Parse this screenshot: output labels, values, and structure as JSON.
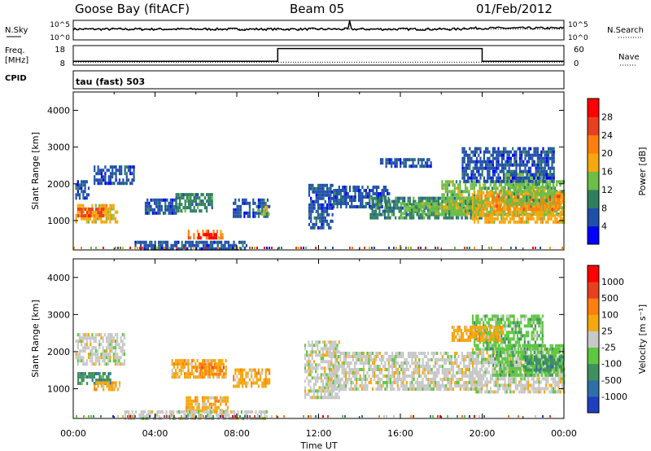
{
  "header": {
    "station": "Goose Bay (fitACF)",
    "beam": "Beam 05",
    "date": "01/Feb/2012"
  },
  "panels": {
    "nsky_label": "N.Sky",
    "nsearch_label": "N.Search",
    "freq_label_1": "Freq.",
    "freq_label_2": "[MHz]",
    "nave_label": "Nave",
    "cpid_label": "CPID",
    "cpid_text": "tau (fast) 503"
  },
  "chart_data": [
    {
      "type": "line",
      "name": "noise",
      "x_unit": "hours UT",
      "left_ticks": [
        "10^5",
        "10^0"
      ],
      "right_ticks": [
        "10^5",
        "10^0"
      ],
      "nsky_level": 0.55,
      "nsky_spike_x": 13.5
    },
    {
      "type": "line",
      "name": "frequency-nave",
      "left_ticks": [
        "18",
        "8"
      ],
      "right_ticks": [
        "60",
        "0"
      ],
      "nave_segments": [
        {
          "x0": 0,
          "x1": 10,
          "value": 0.2
        },
        {
          "x0": 10,
          "x1": 20,
          "value": 0.85
        },
        {
          "x0": 20,
          "x1": 24,
          "value": 0.2
        }
      ],
      "freq_level": 0.15
    },
    {
      "type": "heatmap",
      "name": "power",
      "ylabel": "Slant Range [km]",
      "ylim": [
        200,
        4500
      ],
      "yticks": [
        "1000",
        "2000",
        "3000",
        "4000"
      ],
      "colorbar": {
        "label": "Power [dB]",
        "ticks": [
          "4",
          "8",
          "12",
          "16",
          "20",
          "24",
          "28"
        ],
        "colors": [
          "#0000ff",
          "#1f4fa8",
          "#2f7f5f",
          "#6dbd48",
          "#f5a80e",
          "#ff7f0e",
          "#e8401f",
          "#ff0000"
        ]
      },
      "regions": [
        {
          "x0": 0.1,
          "x1": 0.8,
          "y0": 1650,
          "y1": 2100,
          "level": 1
        },
        {
          "x0": 0.1,
          "x1": 2.2,
          "y0": 1000,
          "y1": 1450,
          "level": 4
        },
        {
          "x0": 0.2,
          "x1": 1.5,
          "y0": 1150,
          "y1": 1350,
          "level": 6
        },
        {
          "x0": 1.0,
          "x1": 3.0,
          "y0": 2000,
          "y1": 2500,
          "level": 1
        },
        {
          "x0": 3.5,
          "x1": 5.0,
          "y0": 1200,
          "y1": 1600,
          "level": 1
        },
        {
          "x0": 5.0,
          "x1": 6.8,
          "y0": 1300,
          "y1": 1750,
          "level": 2
        },
        {
          "x0": 5.6,
          "x1": 7.3,
          "y0": 500,
          "y1": 750,
          "level": 5
        },
        {
          "x0": 6.0,
          "x1": 7.0,
          "y0": 560,
          "y1": 660,
          "level": 7
        },
        {
          "x0": 3.0,
          "x1": 8.5,
          "y0": 250,
          "y1": 450,
          "level": 1
        },
        {
          "x0": 7.8,
          "x1": 9.6,
          "y0": 1100,
          "y1": 1600,
          "level": 1
        },
        {
          "x0": 9.0,
          "x1": 9.6,
          "y0": 1150,
          "y1": 1400,
          "level": 3
        },
        {
          "x0": 11.5,
          "x1": 12.7,
          "y0": 800,
          "y1": 2000,
          "level": 1
        },
        {
          "x0": 12.7,
          "x1": 15.5,
          "y0": 1400,
          "y1": 1950,
          "level": 1
        },
        {
          "x0": 14.5,
          "x1": 20.0,
          "y0": 1100,
          "y1": 1650,
          "level": 2
        },
        {
          "x0": 16.0,
          "x1": 20.0,
          "y0": 1200,
          "y1": 1500,
          "level": 3
        },
        {
          "x0": 18.0,
          "x1": 24.0,
          "y0": 1200,
          "y1": 2100,
          "level": 3
        },
        {
          "x0": 19.5,
          "x1": 24.0,
          "y0": 1000,
          "y1": 1800,
          "level": 4
        },
        {
          "x0": 20.5,
          "x1": 23.8,
          "y0": 1300,
          "y1": 1700,
          "level": 5
        },
        {
          "x0": 21.0,
          "x1": 23.5,
          "y0": 1500,
          "y1": 2300,
          "level": 3
        },
        {
          "x0": 19.0,
          "x1": 23.5,
          "y0": 2100,
          "y1": 3000,
          "level": 1
        },
        {
          "x0": 15.0,
          "x1": 17.5,
          "y0": 2500,
          "y1": 2700,
          "level": 1
        }
      ]
    },
    {
      "type": "heatmap",
      "name": "velocity",
      "ylabel": "Slant Range [km]",
      "xlabel": "Time UT",
      "ylim": [
        200,
        4500
      ],
      "yticks": [
        "1000",
        "2000",
        "3000",
        "4000"
      ],
      "xticks": [
        "00:00",
        "04:00",
        "08:00",
        "12:00",
        "16:00",
        "20:00",
        "00:00"
      ],
      "colorbar": {
        "label": "Velocity [m s⁻¹]",
        "ticks": [
          "1000",
          "500",
          "100",
          "25",
          "-25",
          "-100",
          "-500",
          "-1000"
        ],
        "colors": [
          "#1f3fbf",
          "#2f6fa8",
          "#3f8f5f",
          "#5ec73f",
          "#c8c8c8",
          "#f5a80e",
          "#ff7f0e",
          "#e8401f",
          "#ff0000"
        ]
      },
      "regions": [
        {
          "x0": 0.1,
          "x1": 2.5,
          "y0": 1650,
          "y1": 2500,
          "level": 4
        },
        {
          "x0": 0.2,
          "x1": 1.8,
          "y0": 1150,
          "y1": 1450,
          "level": 2
        },
        {
          "x0": 1.0,
          "x1": 2.3,
          "y0": 1000,
          "y1": 1200,
          "level": 5
        },
        {
          "x0": 4.8,
          "x1": 7.5,
          "y0": 1300,
          "y1": 1800,
          "level": 5
        },
        {
          "x0": 6.0,
          "x1": 7.4,
          "y0": 1400,
          "y1": 1700,
          "level": 6
        },
        {
          "x0": 5.5,
          "x1": 7.6,
          "y0": 400,
          "y1": 800,
          "level": 5
        },
        {
          "x0": 2.5,
          "x1": 9.5,
          "y0": 200,
          "y1": 420,
          "level": 4
        },
        {
          "x0": 7.8,
          "x1": 9.6,
          "y0": 1050,
          "y1": 1550,
          "level": 5
        },
        {
          "x0": 11.3,
          "x1": 13.0,
          "y0": 800,
          "y1": 2300,
          "level": 4
        },
        {
          "x0": 12.5,
          "x1": 20.0,
          "y0": 1000,
          "y1": 2000,
          "level": 4
        },
        {
          "x0": 19.5,
          "x1": 24.0,
          "y0": 900,
          "y1": 2100,
          "level": 4
        },
        {
          "x0": 20.5,
          "x1": 24.0,
          "y0": 1400,
          "y1": 2200,
          "level": 3
        },
        {
          "x0": 22.0,
          "x1": 24.0,
          "y0": 1500,
          "y1": 1900,
          "level": 2
        },
        {
          "x0": 19.5,
          "x1": 23.0,
          "y0": 2100,
          "y1": 3000,
          "level": 3
        },
        {
          "x0": 18.5,
          "x1": 21.0,
          "y0": 2300,
          "y1": 2700,
          "level": 5
        }
      ]
    }
  ]
}
